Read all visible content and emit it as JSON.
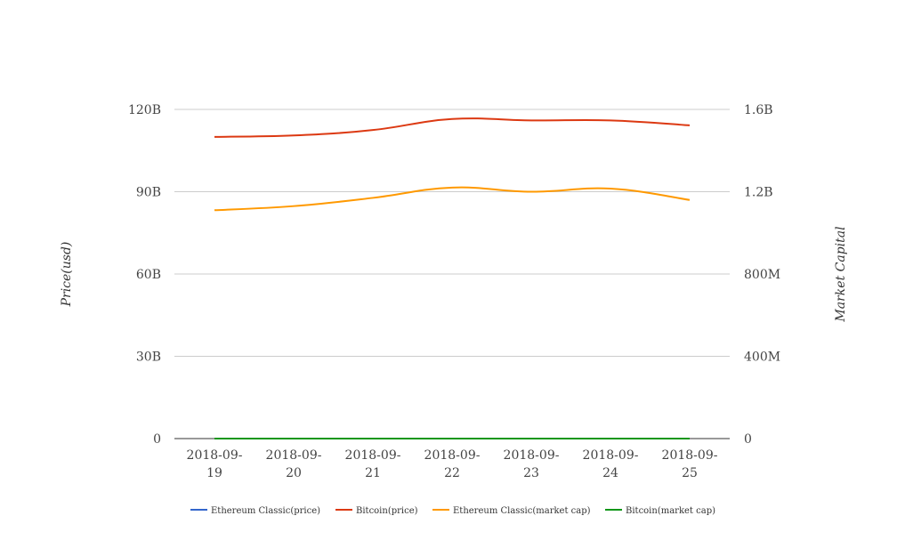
{
  "chart_data": {
    "type": "line",
    "categories": [
      "2018-09-19",
      "2018-09-20",
      "2018-09-21",
      "2018-09-22",
      "2018-09-23",
      "2018-09-24",
      "2018-09-25"
    ],
    "category_lines": [
      [
        "2018-09-",
        "19"
      ],
      [
        "2018-09-",
        "20"
      ],
      [
        "2018-09-",
        "21"
      ],
      [
        "2018-09-",
        "22"
      ],
      [
        "2018-09-",
        "23"
      ],
      [
        "2018-09-",
        "24"
      ],
      [
        "2018-09-",
        "25"
      ]
    ],
    "ylabel_left": "Price(usd)",
    "ylabel_right": "Market Capital",
    "y_left": {
      "min": 0,
      "max": 120000000000,
      "ticks": [
        0,
        30000000000,
        60000000000,
        90000000000,
        120000000000
      ],
      "tick_labels": [
        "0",
        "30B",
        "60B",
        "90B",
        "120B"
      ]
    },
    "y_right": {
      "min": 0,
      "max": 1600000000,
      "ticks": [
        0,
        400000000,
        800000000,
        1200000000,
        1600000000
      ],
      "tick_labels": [
        "0",
        "400M",
        "800M",
        "1.2B",
        "1.6B"
      ]
    },
    "grid": true,
    "legend_position": "bottom",
    "series": [
      {
        "name": "Ethereum Classic(price)",
        "axis": "left",
        "color": "#3366cc",
        "values": [
          11.0,
          11.2,
          11.6,
          12.0,
          11.7,
          11.9,
          11.4
        ]
      },
      {
        "name": "Bitcoin(price)",
        "axis": "left",
        "color": "#dc3912",
        "values": [
          110000000000,
          110500000000,
          112500000000,
          116500000000,
          116000000000,
          116000000000,
          114200000000
        ]
      },
      {
        "name": "Ethereum Classic(market cap)",
        "axis": "right",
        "color": "#ff9900",
        "values": [
          1110000000,
          1130000000,
          1170000000,
          1220000000,
          1200000000,
          1215000000,
          1160000000
        ]
      },
      {
        "name": "Bitcoin(market cap)",
        "axis": "right",
        "color": "#109618",
        "values": [
          6400,
          6450,
          6700,
          6750,
          6700,
          6650,
          6450
        ]
      }
    ]
  }
}
